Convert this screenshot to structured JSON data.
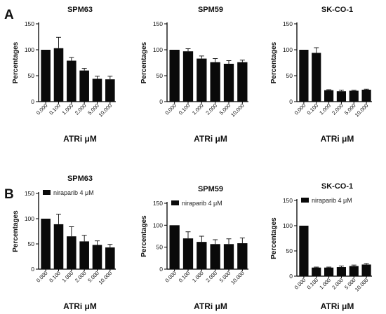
{
  "panel_labels": [
    "A",
    "B"
  ],
  "chart_data": [
    {
      "type": "bar",
      "panel": "A",
      "title": "SPM63",
      "xlabel": "ATRi μM",
      "ylabel": "Percentages",
      "categories": [
        "0.000",
        "0.100",
        "1.000",
        "2.000",
        "5.000",
        "10.000"
      ],
      "values": [
        100,
        103,
        79,
        60,
        44,
        43
      ],
      "errors": [
        0,
        21,
        6,
        4,
        5,
        6
      ],
      "ylim": [
        0,
        150
      ],
      "yticks": [
        0,
        50,
        100,
        150
      ],
      "legend": ""
    },
    {
      "type": "bar",
      "panel": "A",
      "title": "SPM59",
      "xlabel": "ATRi μM",
      "ylabel": "Percentages",
      "categories": [
        "0.000",
        "0.100",
        "1.000",
        "2.000",
        "5.000",
        "10.000"
      ],
      "values": [
        100,
        97,
        83,
        76,
        73,
        76
      ],
      "errors": [
        0,
        5,
        5,
        7,
        6,
        4
      ],
      "ylim": [
        0,
        150
      ],
      "yticks": [
        0,
        50,
        100,
        150
      ],
      "legend": ""
    },
    {
      "type": "bar",
      "panel": "A",
      "title": "SK-CO-1",
      "xlabel": "ATRi μM",
      "ylabel": "Percentages",
      "categories": [
        "0.000",
        "0.100",
        "1.000",
        "2.000",
        "5.000",
        "10.000"
      ],
      "values": [
        100,
        94,
        22,
        20,
        21,
        23
      ],
      "errors": [
        0,
        10,
        1,
        2,
        1,
        1
      ],
      "ylim": [
        0,
        150
      ],
      "yticks": [
        0,
        50,
        100,
        150
      ],
      "legend": ""
    },
    {
      "type": "bar",
      "panel": "B",
      "title": "SPM63",
      "xlabel": "ATRi μM",
      "ylabel": "Percentages",
      "categories": [
        "0.000",
        "0.100",
        "1.000",
        "2.000",
        "5.000",
        "10.000"
      ],
      "values": [
        100,
        89,
        65,
        55,
        48,
        43
      ],
      "errors": [
        0,
        20,
        19,
        12,
        8,
        6
      ],
      "ylim": [
        0,
        150
      ],
      "yticks": [
        0,
        50,
        100,
        150
      ],
      "legend": "niraparib 4 μM"
    },
    {
      "type": "bar",
      "panel": "B",
      "title": "SPM59",
      "xlabel": "ATRi μM",
      "ylabel": "Percentages",
      "categories": [
        "0.000",
        "0.100",
        "1.000",
        "2.000",
        "5.000",
        "10.000"
      ],
      "values": [
        100,
        70,
        62,
        57,
        57,
        59
      ],
      "errors": [
        0,
        15,
        13,
        10,
        12,
        12
      ],
      "ylim": [
        0,
        150
      ],
      "yticks": [
        0,
        50,
        100,
        150
      ],
      "legend": "niraparib 4 μM"
    },
    {
      "type": "bar",
      "panel": "B",
      "title": "SK-CO-1",
      "xlabel": "ATRi μM",
      "ylabel": "Percentages",
      "categories": [
        "0.000",
        "0.100",
        "1.000",
        "2.000",
        "5.000",
        "10.000"
      ],
      "values": [
        100,
        17,
        17,
        18,
        20,
        23
      ],
      "errors": [
        0,
        1,
        1,
        2,
        2,
        2
      ],
      "ylim": [
        0,
        150
      ],
      "yticks": [
        0,
        50,
        100,
        150
      ],
      "legend": "niraparib 4 μM"
    }
  ],
  "colors": {
    "bar": "#0a0a0a",
    "axis": "#000000",
    "text": "#111111"
  }
}
